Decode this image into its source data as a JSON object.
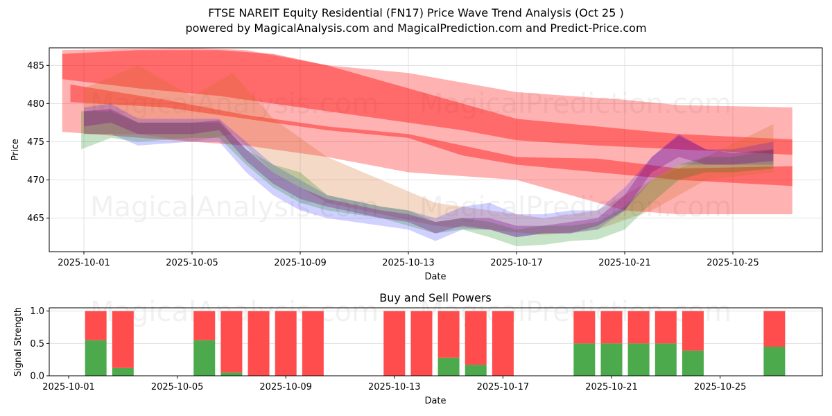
{
  "title_line1": "FTSE NAREIT Equity Residential (FN17) Price Wave Trend Analysis (Oct 25 )",
  "title_line2": "powered by MagicalAnalysis.com and MagicalPrediction.com and Predict-Price.com",
  "watermarks": [
    "MagicalAnalysis.com",
    "MagicalPrediction.com"
  ],
  "colors": {
    "red_band": "#ff0000",
    "blue_band": "#0000ff",
    "green_band": "#008000",
    "buy": "#4caa4c",
    "sell": "#ff4c4c",
    "grid": "#e0e0e0"
  },
  "chart_data": [
    {
      "type": "area",
      "title": "",
      "xlabel": "Date",
      "ylabel": "Price",
      "ylim": [
        460.6,
        487.3
      ],
      "xlim_day_of_oct": [
        29.7,
        28.4
      ],
      "x_ticks": [
        "2025-10-01",
        "2025-10-05",
        "2025-10-09",
        "2025-10-13",
        "2025-10-17",
        "2025-10-21",
        "2025-10-25"
      ],
      "x_tick_days": [
        1,
        5,
        9,
        13,
        17,
        21,
        25
      ],
      "y_ticks": [
        465,
        470,
        475,
        480,
        485
      ],
      "grid": true,
      "bands": [
        {
          "name": "red-wide-band",
          "color": "red",
          "opacity": 0.3,
          "x": [
            0.2,
            5,
            7,
            10,
            13,
            17,
            21,
            23,
            27.2
          ],
          "upper": [
            487,
            487.3,
            487,
            485,
            484,
            481.5,
            480.5,
            479.8,
            479.5
          ],
          "lower": [
            476.3,
            475,
            474.5,
            473,
            471,
            470,
            466,
            465.5,
            465.5
          ]
        },
        {
          "name": "red-upper-band",
          "color": "red",
          "opacity": 0.4,
          "x": [
            0.2,
            3,
            6,
            8,
            10,
            13,
            15,
            17,
            20,
            23,
            27.2
          ],
          "upper": [
            486.5,
            487,
            487,
            486.5,
            485,
            482,
            480,
            478,
            477,
            476,
            475.3
          ],
          "lower": [
            483.2,
            482,
            481,
            480,
            479,
            477.5,
            476.5,
            475.2,
            474.5,
            474,
            473.3
          ]
        },
        {
          "name": "red-lower-band",
          "color": "red",
          "opacity": 0.4,
          "x": [
            0.5,
            4,
            7,
            10,
            13,
            15,
            17,
            20,
            23,
            27.2
          ],
          "upper": [
            482.5,
            480.5,
            478.5,
            477,
            476,
            474.5,
            473,
            472.8,
            471.5,
            471.8
          ],
          "lower": [
            480.2,
            479.5,
            478,
            476.5,
            475.5,
            473.2,
            472,
            471,
            470,
            469.2
          ]
        },
        {
          "name": "orange-wave-band",
          "color": "#d2691e",
          "opacity": 0.25,
          "x": [
            1,
            3,
            5,
            6.5,
            8,
            10,
            12,
            14,
            16,
            18,
            20,
            22,
            24,
            26.5
          ],
          "upper": [
            482,
            485,
            481,
            484,
            478,
            473,
            470,
            467,
            466,
            465,
            466,
            470,
            473,
            477.3
          ],
          "lower": [
            476,
            476,
            475,
            476,
            471,
            467,
            465.5,
            464,
            463.5,
            462.8,
            463.5,
            466,
            470,
            471
          ]
        },
        {
          "name": "blue-wave-band",
          "color": "blue",
          "opacity": 0.18,
          "x": [
            1,
            2,
            3,
            5,
            6,
            7,
            8,
            9,
            10,
            12,
            13,
            14,
            15,
            16,
            17,
            18,
            19,
            20,
            21,
            22,
            23,
            24,
            25,
            26.5
          ],
          "upper": [
            479.5,
            480,
            478,
            478,
            478,
            475,
            472,
            470,
            468,
            466.5,
            466,
            465,
            466.5,
            467,
            465.5,
            465.5,
            466,
            466,
            469,
            473,
            476,
            474,
            474,
            475
          ],
          "lower": [
            476,
            476,
            474.5,
            475,
            475,
            471,
            468,
            466,
            465,
            464,
            463.5,
            462,
            463.5,
            463.5,
            462.5,
            463,
            463,
            463.5,
            466,
            470,
            472,
            472,
            472,
            472
          ]
        },
        {
          "name": "green-wave-band",
          "color": "green",
          "opacity": 0.22,
          "x": [
            0.9,
            2,
            3,
            5,
            6,
            7,
            8,
            9,
            10,
            12,
            13,
            14,
            15,
            16,
            17,
            18,
            19,
            20,
            21,
            22,
            23,
            24,
            25,
            26.5
          ],
          "upper": [
            479,
            479,
            477.5,
            477.5,
            477.5,
            474,
            472,
            471,
            468,
            466.5,
            466,
            464.5,
            465,
            464.5,
            463.5,
            464,
            464,
            464.5,
            466.5,
            470,
            472,
            473,
            473,
            474
          ],
          "lower": [
            474,
            475.5,
            475,
            475.5,
            475.5,
            472,
            469,
            467,
            466,
            465,
            464,
            463,
            463.5,
            462.5,
            461.3,
            461.5,
            462,
            462.2,
            463.5,
            467,
            470,
            471,
            471,
            471.5
          ]
        },
        {
          "name": "purple-core-band",
          "color": "#800080",
          "opacity": 0.3,
          "x": [
            1,
            2,
            3,
            5,
            6,
            7,
            8,
            9,
            10,
            12,
            13,
            14,
            15,
            16,
            17,
            18,
            19,
            20,
            21,
            22,
            23,
            24,
            25,
            26.5
          ],
          "upper": [
            479,
            479.3,
            477.5,
            477.5,
            477.8,
            474,
            471,
            469,
            467.5,
            466,
            465.5,
            464.5,
            465,
            465,
            464,
            464,
            464.5,
            465,
            468,
            473,
            475.8,
            474,
            473.5,
            474
          ],
          "lower": [
            477,
            477.5,
            476,
            476,
            476.5,
            472.5,
            469.5,
            467.5,
            466.5,
            465,
            464.5,
            463,
            464,
            463.5,
            462.5,
            463,
            463,
            464,
            466,
            471,
            473,
            472,
            472,
            472.5
          ]
        }
      ]
    },
    {
      "type": "bar",
      "title": "Buy and Sell Powers",
      "xlabel": "Date",
      "ylabel": "Signal Strength",
      "ylim": [
        0,
        1.05
      ],
      "y_ticks": [
        "0.0",
        "0.5",
        "1.0"
      ],
      "x_ticks": [
        "2025-10-01",
        "2025-10-05",
        "2025-10-09",
        "2025-10-13",
        "2025-10-17",
        "2025-10-21",
        "2025-10-25"
      ],
      "x_tick_days": [
        1,
        5,
        9,
        13,
        17,
        21,
        25
      ],
      "grid": true,
      "categories": [
        "2025-10-02",
        "2025-10-03",
        "2025-10-06",
        "2025-10-07",
        "2025-10-08",
        "2025-10-09",
        "2025-10-10",
        "2025-10-13",
        "2025-10-14",
        "2025-10-15",
        "2025-10-16",
        "2025-10-17",
        "2025-10-20",
        "2025-10-21",
        "2025-10-22",
        "2025-10-23",
        "2025-10-24",
        "2025-10-27"
      ],
      "days": [
        2,
        3,
        6,
        7,
        8,
        9,
        10,
        13,
        14,
        15,
        16,
        17,
        20,
        21,
        22,
        23,
        24,
        27
      ],
      "series": [
        {
          "name": "Buy",
          "values": [
            0.55,
            0.12,
            0.55,
            0.05,
            0,
            0,
            0,
            0,
            0,
            0.28,
            0.17,
            0,
            0.5,
            0.5,
            0.5,
            0.5,
            0.39,
            0.45
          ]
        },
        {
          "name": "Sell",
          "values": [
            0.45,
            0.88,
            0.45,
            0.95,
            1,
            1,
            1,
            1,
            1,
            0.72,
            0.83,
            1,
            0.5,
            0.5,
            0.5,
            0.5,
            0.61,
            0.55
          ]
        }
      ]
    }
  ]
}
